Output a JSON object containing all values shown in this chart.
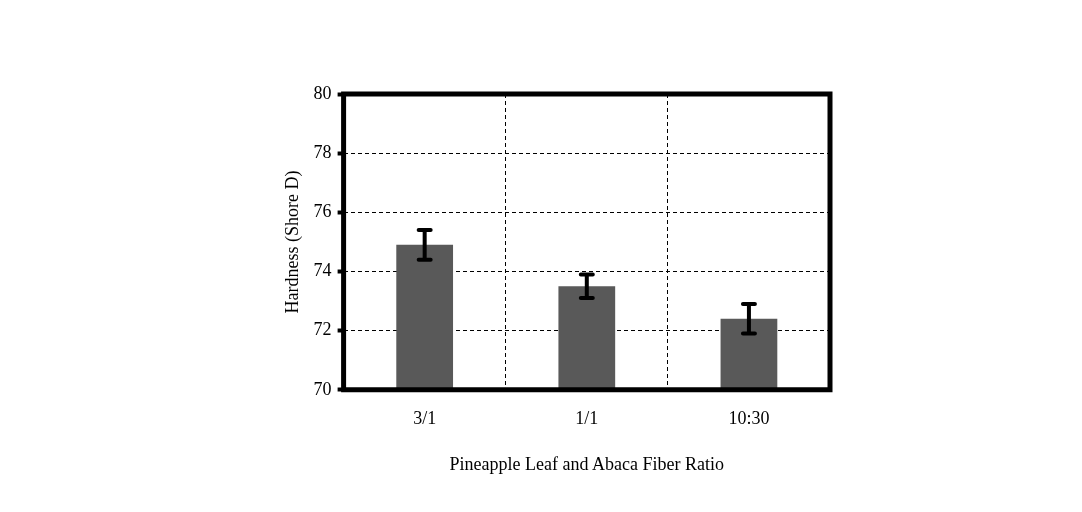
{
  "chart_data": {
    "type": "bar",
    "xlabel": "Pineapple Leaf and Abaca Fiber Ratio",
    "ylabel": "Hardness (Shore D)",
    "categories": [
      "3/1",
      "1/1",
      "10:30"
    ],
    "values": [
      74.9,
      73.5,
      72.4
    ],
    "errors": [
      0.5,
      0.4,
      0.5
    ],
    "color": "#595959",
    "ylim": [
      70,
      80
    ],
    "yticks": [
      70,
      72,
      74,
      76,
      78,
      80
    ],
    "grid": true
  }
}
